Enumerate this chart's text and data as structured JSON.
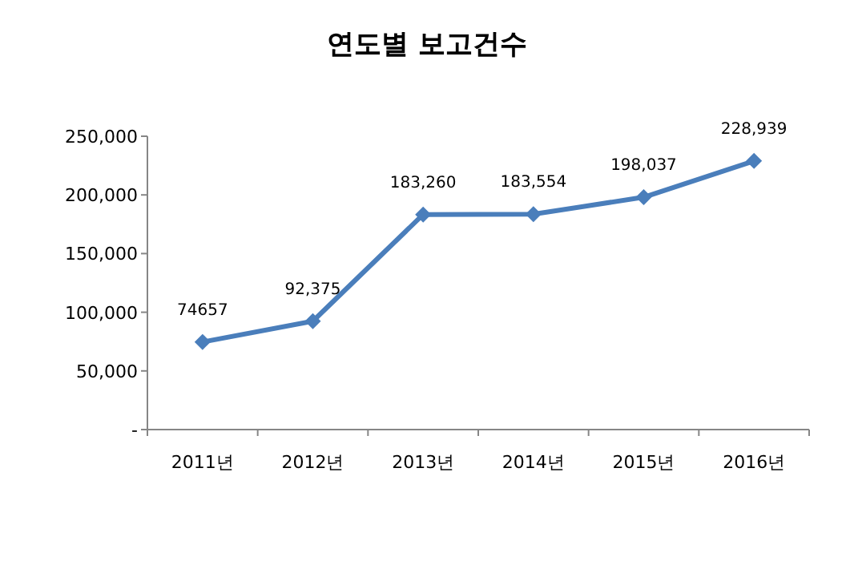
{
  "chart_data": {
    "type": "line",
    "title": "연도별 보고건수",
    "categories": [
      "2011년",
      "2012년",
      "2013년",
      "2014년",
      "2015년",
      "2016년"
    ],
    "series": [
      {
        "color": "#4a7ebb",
        "values": [
          74657,
          92375,
          183260,
          183554,
          198037,
          228939
        ],
        "value_labels": [
          "74657",
          "92,375",
          "183,260",
          "183,554",
          "198,037",
          "228,939"
        ]
      }
    ],
    "ylim": [
      0,
      250000
    ],
    "yticks": [
      {
        "value": 0,
        "label": "-"
      },
      {
        "value": 50000,
        "label": "50,000"
      },
      {
        "value": 100000,
        "label": "100,000"
      },
      {
        "value": 150000,
        "label": "150,000"
      },
      {
        "value": 200000,
        "label": "200,000"
      },
      {
        "value": 250000,
        "label": "250,000"
      }
    ],
    "marker": "diamond",
    "line_style": "solid",
    "grid": false
  }
}
